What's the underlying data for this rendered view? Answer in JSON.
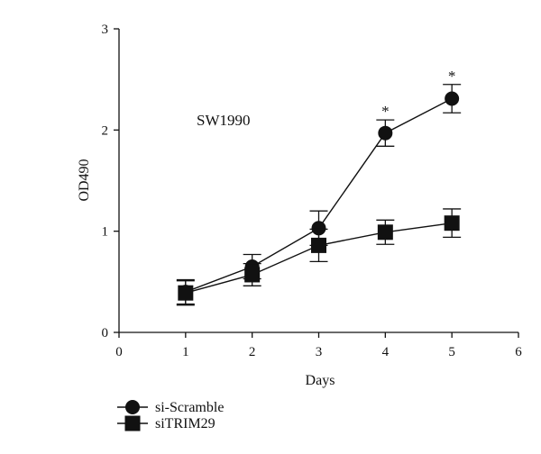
{
  "chart_data": {
    "type": "line",
    "title": "",
    "annotation": "SW1990",
    "xlabel": "Days",
    "ylabel": "OD490",
    "xlim": [
      0,
      6
    ],
    "ylim": [
      0,
      3
    ],
    "x_ticks": [
      0,
      1,
      2,
      3,
      4,
      5,
      6
    ],
    "y_ticks": [
      0,
      1,
      2,
      3
    ],
    "grid": false,
    "legend_position": "bottom-left",
    "series": [
      {
        "name": "si-Scramble",
        "marker": "circle",
        "color": "#111111",
        "x": [
          1,
          2,
          3,
          4,
          5
        ],
        "y": [
          0.4,
          0.65,
          1.03,
          1.97,
          2.31
        ],
        "error": [
          0.12,
          0.12,
          0.17,
          0.13,
          0.14
        ],
        "significance": [
          "",
          "",
          "",
          "*",
          "*"
        ]
      },
      {
        "name": "siTRIM29",
        "marker": "square",
        "color": "#111111",
        "x": [
          1,
          2,
          3,
          4,
          5
        ],
        "y": [
          0.39,
          0.57,
          0.86,
          0.99,
          1.08
        ],
        "error": [
          0.12,
          0.11,
          0.16,
          0.12,
          0.14
        ],
        "significance": [
          "",
          "",
          "",
          "",
          ""
        ]
      }
    ]
  }
}
